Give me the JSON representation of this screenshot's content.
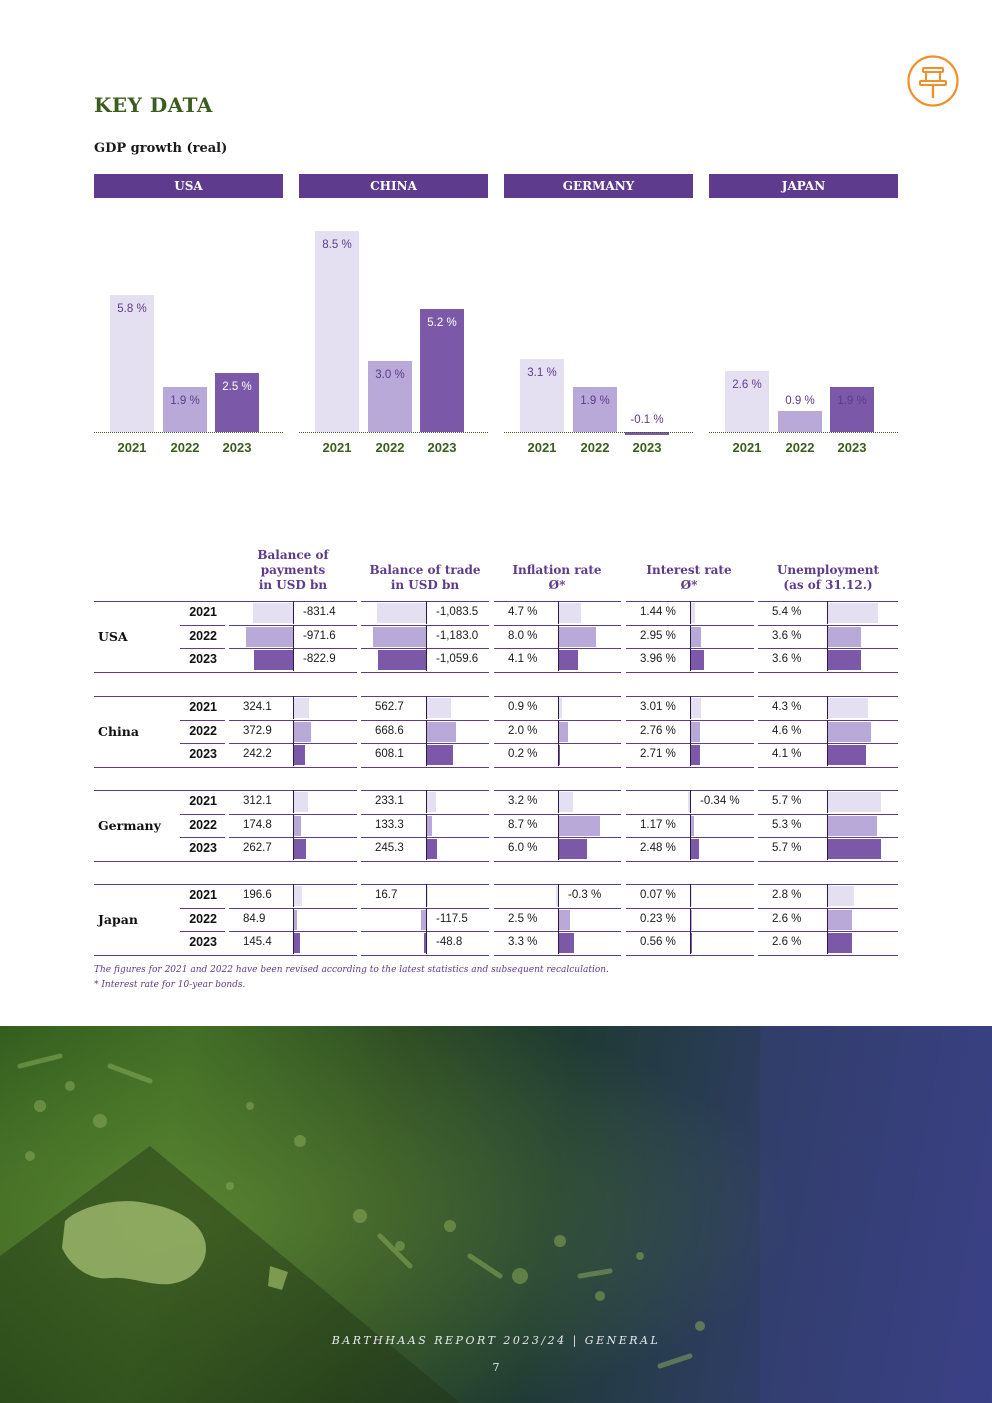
{
  "page": {
    "title": "KEY DATA",
    "subtitle": "GDP growth (real)",
    "footer": "BARTHHAAS REPORT 2023/24 | GENERAL",
    "page_number": "7",
    "icon": "pushpin-icon"
  },
  "colors": {
    "primary_purple": "#5e3b8c",
    "bar_2021": "#e4e0f1",
    "bar_2022": "#b8a9d8",
    "bar_2023": "#7b59a8",
    "title_green": "#3b5e1f",
    "pin_orange": "#f0902a"
  },
  "chart_data": {
    "type": "bar",
    "title": "GDP growth (real)",
    "categories": [
      "2021",
      "2022",
      "2023"
    ],
    "panels": [
      {
        "name": "USA",
        "values": [
          5.8,
          1.9,
          2.5
        ],
        "labels": [
          "5.8 %",
          "1.9 %",
          "2.5 %"
        ]
      },
      {
        "name": "CHINA",
        "values": [
          8.5,
          3.0,
          5.2
        ],
        "labels": [
          "8.5 %",
          "3.0 %",
          "5.2 %"
        ]
      },
      {
        "name": "GERMANY",
        "values": [
          3.1,
          1.9,
          -0.1
        ],
        "labels": [
          "3.1 %",
          "1.9 %",
          "-0.1 %"
        ]
      },
      {
        "name": "JAPAN",
        "values": [
          2.6,
          0.9,
          1.9
        ],
        "labels": [
          "2.6 %",
          "0.9 %",
          "1.9 %"
        ]
      }
    ]
  },
  "table": {
    "columns": [
      "Balance of payments in USD bn",
      "Balance of trade in USD bn",
      "Inflation rate Ø*",
      "Interest rate Ø*",
      "Unemployment (as of 31.12.)"
    ],
    "column_head_lines": [
      [
        "Balance of",
        "payments",
        "in USD bn"
      ],
      [
        "Balance of trade",
        "in USD bn"
      ],
      [
        "Inflation rate",
        "Ø*"
      ],
      [
        "Interest rate",
        "Ø*"
      ],
      [
        "Unemployment",
        "(as of 31.12.)"
      ]
    ],
    "groups": [
      {
        "country": "USA",
        "rows": [
          {
            "year": "2021",
            "cells": [
              "-831.4",
              "-1,083.5",
              "4.7 %",
              "1.44 %",
              "5.4 %"
            ],
            "values": [
              -831.4,
              -1083.5,
              4.7,
              1.44,
              5.4
            ]
          },
          {
            "year": "2022",
            "cells": [
              "-971.6",
              "-1,183.0",
              "8.0 %",
              "2.95 %",
              "3.6 %"
            ],
            "values": [
              -971.6,
              -1183.0,
              8.0,
              2.95,
              3.6
            ]
          },
          {
            "year": "2023",
            "cells": [
              "-822.9",
              "-1,059.6",
              "4.1 %",
              "3.96 %",
              "3.6 %"
            ],
            "values": [
              -822.9,
              -1059.6,
              4.1,
              3.96,
              3.6
            ]
          }
        ]
      },
      {
        "country": "China",
        "rows": [
          {
            "year": "2021",
            "cells": [
              "324.1",
              "562.7",
              "0.9 %",
              "3.01 %",
              "4.3 %"
            ],
            "values": [
              324.1,
              562.7,
              0.9,
              3.01,
              4.3
            ]
          },
          {
            "year": "2022",
            "cells": [
              "372.9",
              "668.6",
              "2.0 %",
              "2.76 %",
              "4.6 %"
            ],
            "values": [
              372.9,
              668.6,
              2.0,
              2.76,
              4.6
            ]
          },
          {
            "year": "2023",
            "cells": [
              "242.2",
              "608.1",
              "0.2 %",
              "2.71 %",
              "4.1 %"
            ],
            "values": [
              242.2,
              608.1,
              0.2,
              2.71,
              4.1
            ]
          }
        ]
      },
      {
        "country": "Germany",
        "rows": [
          {
            "year": "2021",
            "cells": [
              "312.1",
              "233.1",
              "3.2 %",
              "-0.34 %",
              "5.7 %"
            ],
            "values": [
              312.1,
              233.1,
              3.2,
              -0.34,
              5.7
            ]
          },
          {
            "year": "2022",
            "cells": [
              "174.8",
              "133.3",
              "8.7 %",
              "1.17 %",
              "5.3 %"
            ],
            "values": [
              174.8,
              133.3,
              8.7,
              1.17,
              5.3
            ]
          },
          {
            "year": "2023",
            "cells": [
              "262.7",
              "245.3",
              "6.0 %",
              "2.48 %",
              "5.7 %"
            ],
            "values": [
              262.7,
              245.3,
              6.0,
              2.48,
              5.7
            ]
          }
        ]
      },
      {
        "country": "Japan",
        "rows": [
          {
            "year": "2021",
            "cells": [
              "196.6",
              "16.7",
              "-0.3 %",
              "0.07 %",
              "2.8 %"
            ],
            "values": [
              196.6,
              16.7,
              -0.3,
              0.07,
              2.8
            ]
          },
          {
            "year": "2022",
            "cells": [
              "84.9",
              "-117.5",
              "2.5 %",
              "0.23 %",
              "2.6 %"
            ],
            "values": [
              84.9,
              -117.5,
              2.5,
              0.23,
              2.6
            ]
          },
          {
            "year": "2023",
            "cells": [
              "145.4",
              "-48.8",
              "3.3 %",
              "0.56 %",
              "2.6 %"
            ],
            "values": [
              145.4,
              -48.8,
              3.3,
              0.56,
              2.6
            ]
          }
        ]
      }
    ],
    "footnotes": [
      "The figures for 2021 and 2022 have been revised according to the latest statistics and subsequent recalculation.",
      "* Interest rate for 10-year bonds."
    ]
  }
}
